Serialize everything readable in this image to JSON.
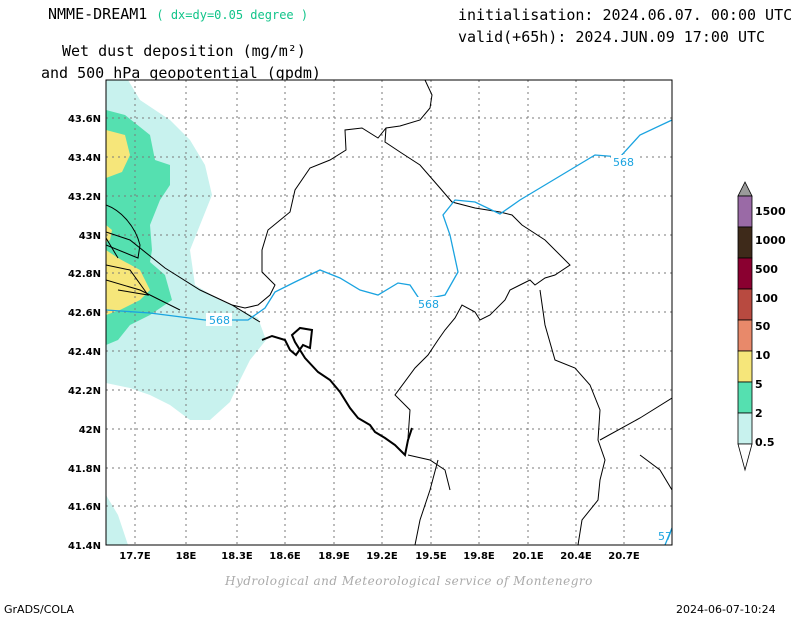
{
  "header": {
    "model": "NMME-DREAM1",
    "resolution": "( dx=dy=0.05 degree )",
    "product_line1": "Wet dust deposition (mg/m²)",
    "product_line2": "and 500 hPa geopotential (gpdm)",
    "initialisation": "initialisation: 2024.06.07. 00:00 UTC",
    "valid": "valid(+65h): 2024.JUN.09 17:00 UTC"
  },
  "footer": {
    "credit": "Hydrological and Meteorological service of Montenegro",
    "software": "GrADS/COLA",
    "timestamp": "2024-06-07-10:24"
  },
  "map": {
    "lon_range": [
      17.5,
      21.0
    ],
    "lat_range": [
      41.4,
      43.75
    ],
    "lon_ticks": [
      "17.7E",
      "18E",
      "18.3E",
      "18.6E",
      "18.9E",
      "19.2E",
      "19.5E",
      "19.8E",
      "20.1E",
      "20.4E",
      "20.7E"
    ],
    "lat_ticks": [
      "43.6N",
      "43.4N",
      "43.2N",
      "43N",
      "42.8N",
      "42.6N",
      "42.4N",
      "42.2N",
      "42N",
      "41.8N",
      "41.6N",
      "41.4N"
    ],
    "grid": true,
    "contour_labels": [
      "568",
      "568",
      "568",
      "57"
    ],
    "contour_color": "#1aa3e0"
  },
  "colorbar": {
    "labels": [
      "1500",
      "1000",
      "500",
      "100",
      "50",
      "10",
      "5",
      "2",
      "0.5"
    ],
    "colors": [
      "#9a6aa6",
      "#3e2a1a",
      "#8a0030",
      "#b84a40",
      "#e8896a",
      "#f6e67a",
      "#55e0b0",
      "#c8f2ee"
    ]
  },
  "colors": {
    "dust_light": "#c8f2ee",
    "dust_medium": "#55e0b0",
    "dust_high": "#f6e67a"
  }
}
